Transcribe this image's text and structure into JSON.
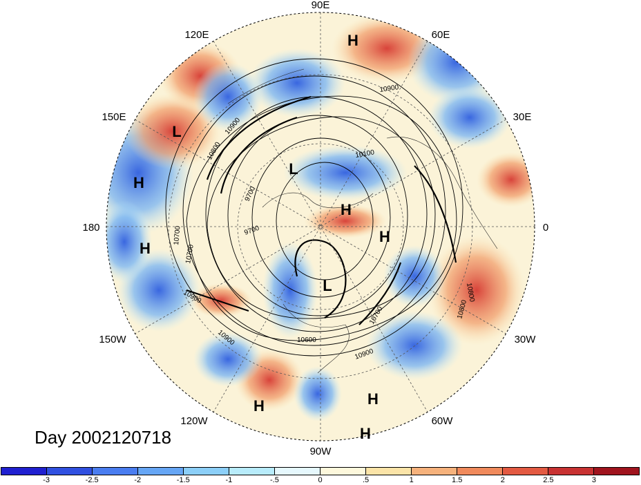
{
  "map": {
    "longitude_labels": {
      "top": "90E",
      "upper_right": "60E",
      "right_upper": "30E",
      "right": "0",
      "right_lower": "30W",
      "lower_right": "60W",
      "bottom": "90W",
      "lower_left": "120W",
      "left_lower": "150W",
      "left": "180",
      "left_upper": "150E",
      "upper_left": "120E"
    },
    "pressure_centers": [
      {
        "type": "H"
      },
      {
        "type": "L"
      },
      {
        "type": "H"
      },
      {
        "type": "H"
      },
      {
        "type": "L"
      },
      {
        "type": "H"
      },
      {
        "type": "H"
      },
      {
        "type": "L"
      },
      {
        "type": "H"
      },
      {
        "type": "H"
      },
      {
        "type": "H"
      }
    ],
    "contour_labels": [
      "10900",
      "10800",
      "9700",
      "9700",
      "10700",
      "10900",
      "10900",
      "10700",
      "10600",
      "10800",
      "10800",
      "10900",
      "10900",
      "10700",
      "10100"
    ]
  },
  "title": {
    "day": "Day 2002120718"
  },
  "colorbar": {
    "colors": [
      "#2020d0",
      "#3050e0",
      "#4a7df0",
      "#66a6f5",
      "#8ccff8",
      "#b8ecfb",
      "#e6f8fd",
      "#fdf8dc",
      "#fbe4a8",
      "#f6b27c",
      "#f08a5c",
      "#e35a42",
      "#c83232",
      "#a0141e"
    ],
    "tick_labels": [
      "-3",
      "-2.5",
      "-2",
      "-1.5",
      "-1",
      "-.5",
      "0",
      ".5",
      "1",
      "1.5",
      "2",
      "2.5",
      "3"
    ]
  }
}
